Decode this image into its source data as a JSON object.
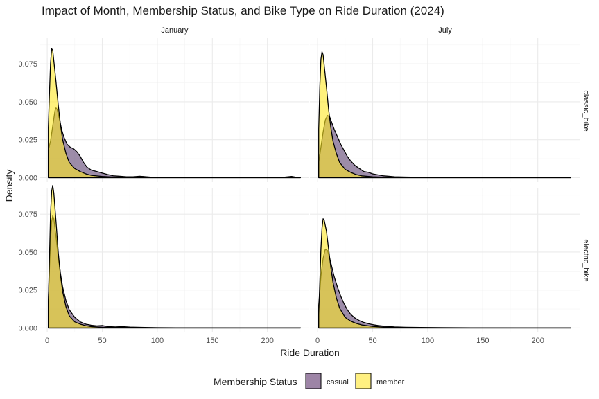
{
  "chart_data": {
    "type": "area",
    "title": "Impact of Month, Membership Status, and Bike Type on Ride Duration (2024)",
    "xlabel": "Ride Duration",
    "ylabel": "Density",
    "xlim": [
      -7,
      238
    ],
    "ylim": [
      -0.003,
      0.092
    ],
    "x_ticks": [
      0,
      50,
      100,
      150,
      200
    ],
    "x_tick_labels": [
      "0",
      "50",
      "100",
      "150",
      "200"
    ],
    "y_ticks": [
      0.0,
      0.025,
      0.05,
      0.075
    ],
    "y_tick_labels": [
      "0.000",
      "0.025",
      "0.050",
      "0.075"
    ],
    "col_facets": [
      "January",
      "July"
    ],
    "row_facets": [
      "classic_bike",
      "electric_bike"
    ],
    "grid": true,
    "legend": {
      "title": "Membership Status",
      "position": "bottom",
      "entries": [
        {
          "label": "casual",
          "color": "#9d84a6"
        },
        {
          "label": "member",
          "color": "#fff081"
        }
      ]
    },
    "colors": {
      "casual": "#5b3f70",
      "member": "#fde725",
      "fill_opacity": 0.6,
      "outline": "#000000"
    },
    "panels": [
      {
        "col": "January",
        "row": "classic_bike",
        "series": [
          {
            "name": "casual",
            "points": [
              [
                1,
                0.018
              ],
              [
                3,
                0.024
              ],
              [
                5,
                0.034
              ],
              [
                7,
                0.044
              ],
              [
                8,
                0.046
              ],
              [
                9,
                0.045
              ],
              [
                11,
                0.039
              ],
              [
                13,
                0.032
              ],
              [
                15,
                0.027
              ],
              [
                18,
                0.022
              ],
              [
                21,
                0.02
              ],
              [
                24,
                0.019
              ],
              [
                27,
                0.017
              ],
              [
                30,
                0.014
              ],
              [
                33,
                0.01
              ],
              [
                36,
                0.007
              ],
              [
                40,
                0.005
              ],
              [
                45,
                0.004
              ],
              [
                50,
                0.003
              ],
              [
                55,
                0.002
              ],
              [
                60,
                0.0012
              ],
              [
                66,
                0.0009
              ],
              [
                72,
                0.0006
              ],
              [
                78,
                0.0006
              ],
              [
                84,
                0.0009
              ],
              [
                88,
                0.0007
              ],
              [
                95,
                0.0003
              ],
              [
                105,
                0.0002
              ],
              [
                120,
                0.0002
              ],
              [
                140,
                0.0001
              ],
              [
                170,
                0.0001
              ],
              [
                200,
                0.0001
              ],
              [
                215,
                0.0003
              ],
              [
                222,
                0.0008
              ],
              [
                226,
                0.0003
              ],
              [
                230,
                0.0001
              ]
            ]
          },
          {
            "name": "member",
            "points": [
              [
                1,
                0.033
              ],
              [
                2,
                0.055
              ],
              [
                3,
                0.075
              ],
              [
                4,
                0.085
              ],
              [
                5,
                0.084
              ],
              [
                6,
                0.077
              ],
              [
                8,
                0.063
              ],
              [
                10,
                0.048
              ],
              [
                12,
                0.035
              ],
              [
                14,
                0.025
              ],
              [
                17,
                0.016
              ],
              [
                20,
                0.01
              ],
              [
                25,
                0.006
              ],
              [
                30,
                0.004
              ],
              [
                35,
                0.0025
              ],
              [
                40,
                0.0015
              ],
              [
                50,
                0.0008
              ],
              [
                60,
                0.0004
              ],
              [
                70,
                0.0003
              ],
              [
                80,
                0.0005
              ],
              [
                87,
                0.0007
              ],
              [
                92,
                0.0003
              ],
              [
                110,
                0.0001
              ],
              [
                150,
                0.0001
              ],
              [
                200,
                0.0001
              ],
              [
                230,
                0.0001
              ]
            ]
          }
        ]
      },
      {
        "col": "July",
        "row": "classic_bike",
        "series": [
          {
            "name": "casual",
            "points": [
              [
                1,
                0.01
              ],
              [
                3,
                0.02
              ],
              [
                5,
                0.03
              ],
              [
                7,
                0.038
              ],
              [
                9,
                0.041
              ],
              [
                11,
                0.04
              ],
              [
                13,
                0.036
              ],
              [
                15,
                0.032
              ],
              [
                18,
                0.027
              ],
              [
                21,
                0.022
              ],
              [
                24,
                0.018
              ],
              [
                27,
                0.014
              ],
              [
                30,
                0.011
              ],
              [
                34,
                0.008
              ],
              [
                38,
                0.006
              ],
              [
                42,
                0.004
              ],
              [
                46,
                0.0035
              ],
              [
                50,
                0.0025
              ],
              [
                55,
                0.0018
              ],
              [
                60,
                0.0012
              ],
              [
                70,
                0.0006
              ],
              [
                80,
                0.0004
              ],
              [
                100,
                0.0002
              ],
              [
                140,
                0.0001
              ],
              [
                200,
                5e-05
              ],
              [
                230,
                5e-05
              ]
            ]
          },
          {
            "name": "member",
            "points": [
              [
                1,
                0.032
              ],
              [
                2,
                0.06
              ],
              [
                3,
                0.078
              ],
              [
                4,
                0.083
              ],
              [
                5,
                0.081
              ],
              [
                6,
                0.074
              ],
              [
                8,
                0.06
              ],
              [
                10,
                0.045
              ],
              [
                12,
                0.033
              ],
              [
                14,
                0.024
              ],
              [
                17,
                0.016
              ],
              [
                20,
                0.01
              ],
              [
                25,
                0.0055
              ],
              [
                30,
                0.0035
              ],
              [
                35,
                0.002
              ],
              [
                40,
                0.0012
              ],
              [
                50,
                0.0006
              ],
              [
                60,
                0.0003
              ],
              [
                80,
                0.0002
              ],
              [
                120,
                0.0001
              ],
              [
                180,
                5e-05
              ],
              [
                230,
                5e-05
              ]
            ]
          }
        ]
      },
      {
        "col": "January",
        "row": "electric_bike",
        "series": [
          {
            "name": "casual",
            "points": [
              [
                1,
                0.018
              ],
              [
                2,
                0.038
              ],
              [
                3,
                0.058
              ],
              [
                4,
                0.07
              ],
              [
                5,
                0.074
              ],
              [
                6,
                0.072
              ],
              [
                8,
                0.06
              ],
              [
                10,
                0.047
              ],
              [
                12,
                0.036
              ],
              [
                14,
                0.027
              ],
              [
                17,
                0.018
              ],
              [
                20,
                0.012
              ],
              [
                25,
                0.007
              ],
              [
                30,
                0.004
              ],
              [
                35,
                0.0025
              ],
              [
                40,
                0.0018
              ],
              [
                45,
                0.0014
              ],
              [
                50,
                0.0016
              ],
              [
                55,
                0.0009
              ],
              [
                62,
                0.0007
              ],
              [
                68,
                0.0009
              ],
              [
                75,
                0.0006
              ],
              [
                85,
                0.0004
              ],
              [
                100,
                0.0002
              ],
              [
                130,
                0.0001
              ],
              [
                180,
                5e-05
              ],
              [
                230,
                5e-05
              ]
            ]
          },
          {
            "name": "member",
            "points": [
              [
                1,
                0.017
              ],
              [
                2,
                0.045
              ],
              [
                3,
                0.075
              ],
              [
                4,
                0.09
              ],
              [
                5,
                0.094
              ],
              [
                6,
                0.089
              ],
              [
                8,
                0.07
              ],
              [
                10,
                0.05
              ],
              [
                12,
                0.035
              ],
              [
                14,
                0.024
              ],
              [
                17,
                0.014
              ],
              [
                20,
                0.008
              ],
              [
                25,
                0.004
              ],
              [
                30,
                0.0025
              ],
              [
                35,
                0.0015
              ],
              [
                40,
                0.0009
              ],
              [
                50,
                0.0005
              ],
              [
                65,
                0.0004
              ],
              [
                80,
                0.0002
              ],
              [
                120,
                0.0001
              ],
              [
                180,
                5e-05
              ],
              [
                230,
                5e-05
              ]
            ]
          }
        ]
      },
      {
        "col": "July",
        "row": "electric_bike",
        "series": [
          {
            "name": "casual",
            "points": [
              [
                1,
                0.015
              ],
              [
                2,
                0.024
              ],
              [
                3,
                0.034
              ],
              [
                5,
                0.046
              ],
              [
                7,
                0.052
              ],
              [
                9,
                0.051
              ],
              [
                11,
                0.046
              ],
              [
                13,
                0.04
              ],
              [
                15,
                0.034
              ],
              [
                18,
                0.027
              ],
              [
                21,
                0.021
              ],
              [
                24,
                0.016
              ],
              [
                27,
                0.012
              ],
              [
                30,
                0.009
              ],
              [
                34,
                0.0065
              ],
              [
                38,
                0.0048
              ],
              [
                42,
                0.0036
              ],
              [
                46,
                0.0028
              ],
              [
                50,
                0.0022
              ],
              [
                55,
                0.0016
              ],
              [
                60,
                0.0012
              ],
              [
                70,
                0.0007
              ],
              [
                80,
                0.0005
              ],
              [
                100,
                0.0003
              ],
              [
                140,
                0.0001
              ],
              [
                200,
                5e-05
              ],
              [
                230,
                5e-05
              ]
            ]
          },
          {
            "name": "member",
            "points": [
              [
                1,
                0.009
              ],
              [
                2,
                0.03
              ],
              [
                3,
                0.052
              ],
              [
                4,
                0.066
              ],
              [
                5,
                0.072
              ],
              [
                6,
                0.071
              ],
              [
                8,
                0.064
              ],
              [
                10,
                0.052
              ],
              [
                12,
                0.04
              ],
              [
                14,
                0.03
              ],
              [
                17,
                0.02
              ],
              [
                20,
                0.013
              ],
              [
                25,
                0.007
              ],
              [
                30,
                0.0045
              ],
              [
                35,
                0.003
              ],
              [
                40,
                0.002
              ],
              [
                50,
                0.001
              ],
              [
                60,
                0.0006
              ],
              [
                80,
                0.0003
              ],
              [
                120,
                0.0001
              ],
              [
                180,
                5e-05
              ],
              [
                230,
                5e-05
              ]
            ]
          }
        ]
      }
    ]
  }
}
